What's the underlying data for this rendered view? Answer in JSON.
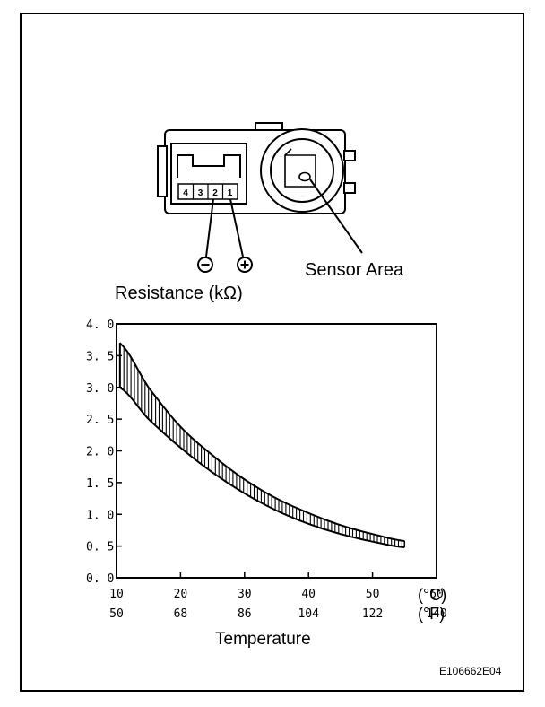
{
  "connector": {
    "pins": [
      "4",
      "3",
      "2",
      "1"
    ],
    "minus_symbol": "−",
    "plus_symbol": "+",
    "sensor_label": "Sensor Area"
  },
  "labels": {
    "resistance": "Resistance (kΩ)",
    "temperature": "Temperature",
    "figure_code": "E106662E04"
  },
  "chart_data": {
    "type": "area",
    "ylabel": "Resistance (kΩ)",
    "xlabel": "Temperature",
    "xlim": [
      10,
      60
    ],
    "ylim": [
      0.0,
      4.0
    ],
    "y_ticks": [
      0.0,
      0.5,
      1.0,
      1.5,
      2.0,
      2.5,
      3.0,
      3.5,
      4.0
    ],
    "y_tick_labels": [
      "0. 0",
      "0. 5",
      "1. 0",
      "1. 5",
      "2. 0",
      "2. 5",
      "3. 0",
      "3. 5",
      "4. 0"
    ],
    "x_ticks_c": [
      10,
      20,
      30,
      40,
      50,
      60
    ],
    "x_tick_labels_c": [
      "10",
      "20",
      "30",
      "40",
      "50",
      "60"
    ],
    "x_tick_labels_f": [
      "50",
      "68",
      "86",
      "104",
      "122",
      "140"
    ],
    "x_unit_c": "(°C)",
    "x_unit_f": "(°F)",
    "grid": false,
    "band_x": [
      10.5,
      15,
      20,
      25,
      30,
      35,
      40,
      45,
      50,
      55
    ],
    "upper": [
      3.7,
      3.0,
      2.38,
      1.93,
      1.55,
      1.25,
      1.02,
      0.83,
      0.69,
      0.58
    ],
    "lower": [
      3.0,
      2.5,
      2.05,
      1.66,
      1.33,
      1.06,
      0.85,
      0.69,
      0.57,
      0.48
    ]
  }
}
